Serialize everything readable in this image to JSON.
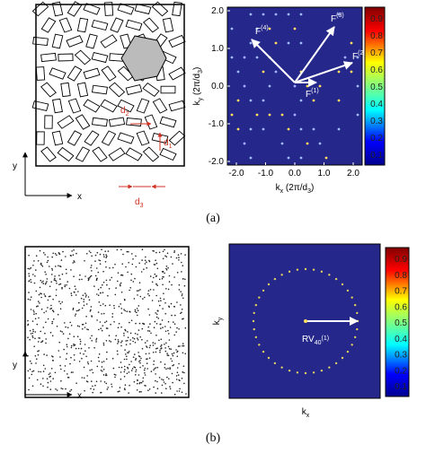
{
  "panels": [
    {
      "label": "(a)",
      "real_space": {
        "axis_x": "x",
        "axis_y": "y",
        "dimensions": [
          [
            {
              "text": "d"
            },
            {
              "sub": "1"
            }
          ],
          [
            {
              "text": "d"
            },
            {
              "sub": "2"
            }
          ],
          [
            {
              "text": "d"
            },
            {
              "sub": "3"
            }
          ]
        ]
      },
      "reciprocal": {
        "y_label": [
          {
            "text": "k"
          },
          {
            "sub": "y"
          },
          {
            "text": " (2π/d"
          },
          {
            "sub": "3"
          },
          {
            "text": ")"
          }
        ],
        "x_label": [
          {
            "text": "k"
          },
          {
            "sub": "x"
          },
          {
            "text": " (2π/d"
          },
          {
            "sub": "3"
          },
          {
            "text": ")"
          }
        ],
        "xticks": [
          "-2.0",
          "-1.0",
          "0.0",
          "1.0",
          "2.0"
        ],
        "yticks": [
          "2.0",
          "1.0",
          "0.0",
          "-1.0",
          "-2.0"
        ],
        "colorbar_ticks": [
          "0.9",
          "0.8",
          "0.7",
          "0.6",
          "0.5",
          "0.4",
          "0.3",
          "0.2",
          "0.1"
        ],
        "vectors": [
          [
            {
              "text": "F"
            },
            {
              "sup": "(1)"
            }
          ],
          [
            {
              "text": "F"
            },
            {
              "sup": "(2)"
            }
          ],
          [
            {
              "text": "F"
            },
            {
              "sup": "(3)"
            }
          ],
          [
            {
              "text": "F"
            },
            {
              "sup": "(4)"
            }
          ]
        ]
      }
    },
    {
      "label": "(b)",
      "real_space": {
        "axis_x": "x",
        "axis_y": "y"
      },
      "reciprocal": {
        "y_label": [
          {
            "text": "k"
          },
          {
            "sub": "y"
          }
        ],
        "x_label": [
          {
            "text": "k"
          },
          {
            "sub": "x"
          }
        ],
        "colorbar_ticks": [
          "0.9",
          "0.8",
          "0.7",
          "0.6",
          "0.5",
          "0.4",
          "0.3",
          "0.2",
          "0.1"
        ],
        "vector": [
          {
            "text": "RV"
          },
          {
            "sub": "40"
          },
          {
            "sup": "(1)"
          }
        ]
      }
    }
  ]
}
